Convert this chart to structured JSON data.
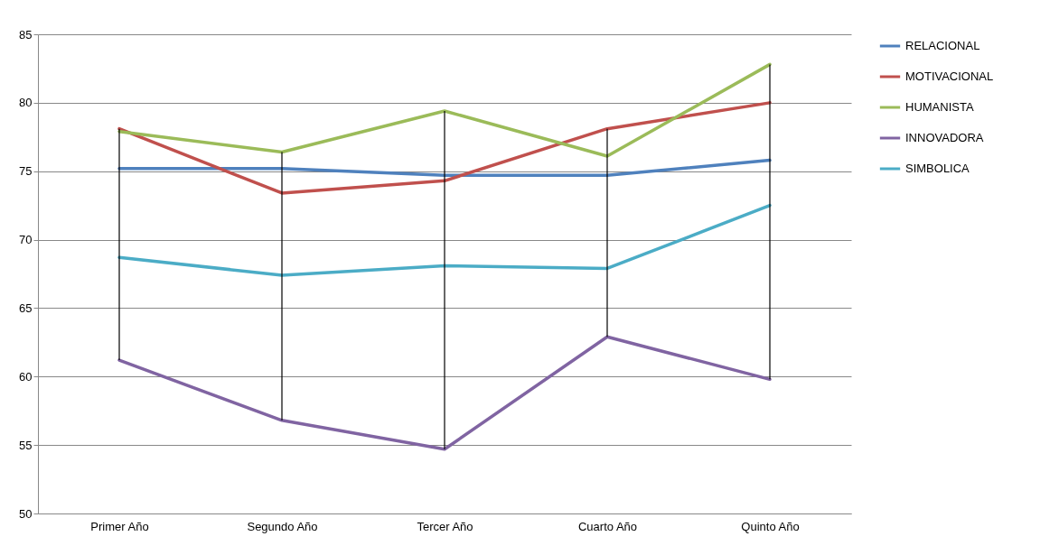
{
  "chart_data": {
    "type": "line",
    "categories": [
      "Primer Año",
      "Segundo Año",
      "Tercer Año",
      "Cuarto Año",
      "Quinto Año"
    ],
    "series": [
      {
        "name": "RELACIONAL",
        "color": "#4f81bd",
        "values": [
          75.2,
          75.2,
          74.7,
          74.7,
          75.8
        ]
      },
      {
        "name": "MOTIVACIONAL",
        "color": "#c0504d",
        "values": [
          78.1,
          73.4,
          74.3,
          78.1,
          80.0
        ]
      },
      {
        "name": "HUMANISTA",
        "color": "#9bbb59",
        "values": [
          77.9,
          76.4,
          79.4,
          76.1,
          82.8
        ]
      },
      {
        "name": "INNOVADORA",
        "color": "#8064a2",
        "values": [
          61.2,
          56.8,
          54.7,
          62.9,
          59.8
        ],
        "errors": [
          [
            61.2,
            78.1
          ],
          [
            56.8,
            76.4
          ],
          [
            54.7,
            79.4
          ],
          [
            62.9,
            78.1
          ],
          [
            59.8,
            82.8
          ]
        ]
      },
      {
        "name": "SIMBOLICA",
        "color": "#4bacc6",
        "values": [
          68.7,
          67.4,
          68.1,
          67.9,
          72.5
        ]
      }
    ],
    "ylim": [
      50,
      85
    ],
    "yticks": [
      50,
      55,
      60,
      65,
      70,
      75,
      80,
      85
    ],
    "grid": "y",
    "legend": "right",
    "marker": "none",
    "line_style": "solid"
  }
}
